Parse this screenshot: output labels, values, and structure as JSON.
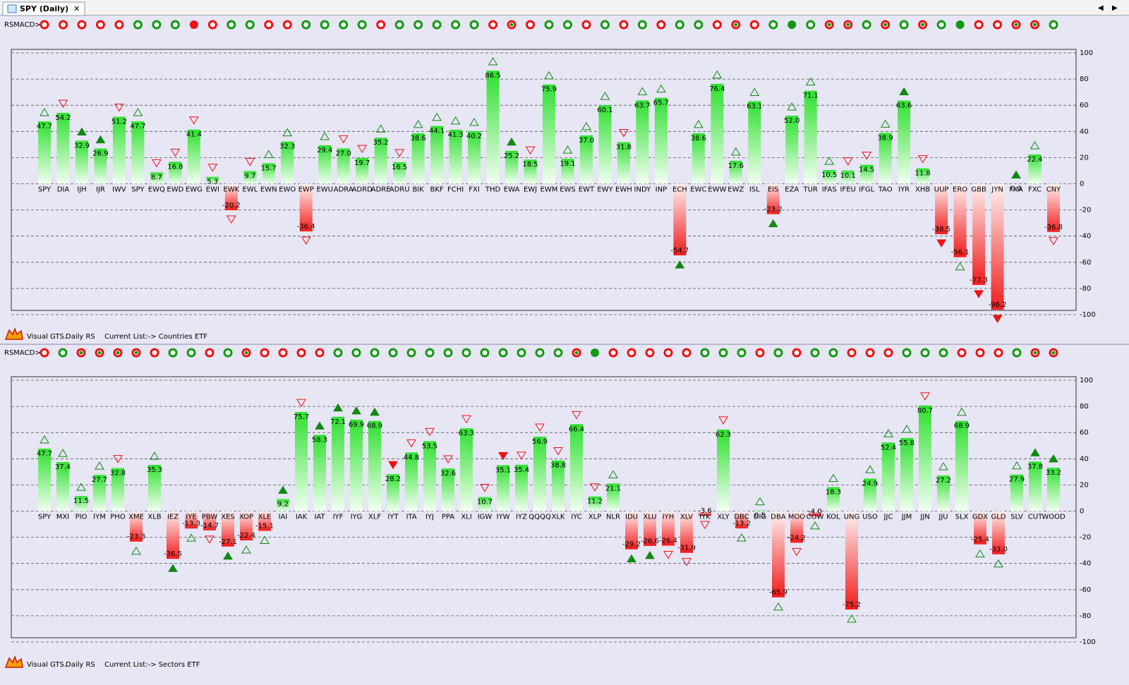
{
  "window": {
    "tab": "SPY (Daily)"
  },
  "chart_data": [
    {
      "type": "bar",
      "indicator_label": "RSMACD>",
      "signals": [
        "r",
        "r",
        "r",
        "r",
        "r",
        "g",
        "g",
        "g",
        "R",
        "r",
        "g",
        "g",
        "r",
        "r",
        "g",
        "g",
        "g",
        "g",
        "r",
        "g",
        "g",
        "g",
        "g",
        "g",
        "r",
        "rg",
        "r",
        "g",
        "g",
        "r",
        "g",
        "r",
        "g",
        "r",
        "g",
        "g",
        "r",
        "rg",
        "r",
        "g",
        "G",
        "g",
        "rg",
        "rg",
        "g",
        "rg",
        "g",
        "rg",
        "g",
        "G",
        "r",
        "r",
        "rg",
        "rg",
        "g"
      ],
      "categories": [
        "SPY",
        "DIA",
        "IJH",
        "IJR",
        "IWV",
        "SPY",
        "EWQ",
        "EWD",
        "EWG",
        "EWI",
        "EWK",
        "EWL",
        "EWN",
        "EWO",
        "EWP",
        "EWU",
        "ADRA",
        "ADRD",
        "ADRE",
        "ADRU",
        "BIK",
        "BKF",
        "FCHI",
        "FXI",
        "THD",
        "EWA",
        "EWJ",
        "EWM",
        "EWS",
        "EWT",
        "EWY",
        "EWH",
        "INDY",
        "INP",
        "ECH",
        "EWC",
        "EWW",
        "EWZ",
        "ISL",
        "EIS",
        "EZA",
        "TUR",
        "IFAS",
        "IFEU",
        "IFGL",
        "TAO",
        "IYR",
        "XHB",
        "UUP",
        "ERO",
        "GBB",
        "JYN",
        "FXA",
        "FXC",
        "CNY"
      ],
      "values": [
        47.7,
        54.2,
        32.9,
        26.9,
        51.2,
        47.7,
        8.7,
        16.8,
        41.4,
        5.3,
        -20.2,
        9.7,
        15.7,
        32.3,
        -36.4,
        29.4,
        27.0,
        19.7,
        35.2,
        16.5,
        38.6,
        44.1,
        41.3,
        40.2,
        86.5,
        25.2,
        18.5,
        75.9,
        19.1,
        37.0,
        60.1,
        31.8,
        63.7,
        65.7,
        -54.7,
        38.6,
        76.4,
        17.6,
        63.1,
        -23.2,
        52.0,
        71.1,
        10.5,
        10.1,
        14.5,
        38.9,
        63.6,
        11.8,
        -38.5,
        -56.1,
        -77.3,
        -96.2,
        0,
        22.4,
        -36.8
      ],
      "value_labels": [
        "47.7",
        "54.2",
        "32.9",
        "26.9",
        "51.2",
        "47.7",
        "8.7",
        "16.8",
        "41.4",
        "5.3",
        "-20.2",
        "9.7",
        "15.7",
        "32.3",
        "-36.4",
        "29.4",
        "27.0",
        "19.7",
        "35.2",
        "16.5",
        "38.6",
        "44.1",
        "41.3",
        "40.2",
        "86.5",
        "25.2",
        "18.5",
        "75.9",
        "19.1",
        "37.0",
        "60.1",
        "31.8",
        "63.7",
        "65.7",
        "-54.7",
        "38.6",
        "76.4",
        "17.6",
        "63.1",
        "-23.2",
        "52.0",
        "71.1",
        "10.5",
        "10.1",
        "14.5",
        "38.9",
        "63.6",
        "11.8",
        "-38.5",
        "-56.1",
        "-77.3",
        "-96.2",
        "0.0",
        "22.4",
        "-36.8"
      ],
      "markers": [
        "u",
        "d",
        "U",
        "U",
        "d",
        "u",
        "d",
        "d",
        "d",
        "d",
        "d",
        "d",
        "u",
        "u",
        "d",
        "u",
        "d",
        "d",
        "u",
        "d",
        "u",
        "u",
        "u",
        "u",
        "u",
        "U",
        "d",
        "u",
        "u",
        "u",
        "u",
        "d",
        "u",
        "u",
        "U",
        "u",
        "u",
        "u",
        "u",
        "U",
        "u",
        "u",
        "u",
        "d",
        "d",
        "u",
        "U",
        "d",
        "D",
        "u",
        "D",
        "D",
        "U",
        "u",
        "d"
      ],
      "ylim": [
        -100,
        100
      ],
      "yticks": [
        100,
        80,
        60,
        40,
        20,
        0,
        -20,
        -40,
        -60,
        -80,
        -100
      ],
      "grid": true,
      "footer": {
        "app": "Visual GTS.",
        "mode": "Daily RS",
        "list": "Current List:-> Countries ETF"
      }
    },
    {
      "type": "bar",
      "indicator_label": "RSMACD>",
      "signals": [
        "r",
        "g",
        "rg",
        "rg",
        "rg",
        "rg",
        "r",
        "g",
        "g",
        "r",
        "g",
        "rg",
        "r",
        "r",
        "r",
        "r",
        "g",
        "g",
        "g",
        "g",
        "g",
        "g",
        "g",
        "g",
        "g",
        "g",
        "g",
        "g",
        "g",
        "rg",
        "G",
        "r",
        "r",
        "r",
        "r",
        "r",
        "g",
        "g",
        "g",
        "r",
        "g",
        "r",
        "g",
        "g",
        "r",
        "r",
        "r",
        "g",
        "g",
        "g",
        "r",
        "r",
        "r",
        "g",
        "rg",
        "rg"
      ],
      "categories": [
        "SPY",
        "MXI",
        "PIO",
        "IYM",
        "PHO",
        "XME",
        "XLB",
        "IEZ",
        "IYE",
        "PBW",
        "XES",
        "XOP",
        "XLE",
        "IAI",
        "IAK",
        "IAT",
        "IYF",
        "IYG",
        "XLF",
        "IYT",
        "ITA",
        "IYJ",
        "PPA",
        "XLI",
        "IGW",
        "IYW",
        "IYZ",
        "QQQQ",
        "XLK",
        "IYC",
        "XLP",
        "NLR",
        "IDU",
        "XLU",
        "IYH",
        "XLV",
        "IYK",
        "XLY",
        "DBC",
        "DIG",
        "DBA",
        "MOO",
        "COW",
        "KOL",
        "UNG",
        "USO",
        "JJC",
        "JJM",
        "JJN",
        "JJU",
        "SLX",
        "GDX",
        "GLD",
        "SLV",
        "CUT",
        "WOOD"
      ],
      "values": [
        47.7,
        37.4,
        11.5,
        27.7,
        32.8,
        -23.3,
        35.3,
        -36.5,
        -13.3,
        -14.7,
        -27.1,
        -22.4,
        -15.1,
        9.2,
        75.7,
        58.3,
        72.1,
        69.9,
        68.9,
        28.2,
        44.8,
        53.5,
        32.6,
        63.3,
        10.7,
        35.1,
        35.4,
        56.9,
        38.8,
        66.4,
        11.2,
        21.1,
        -29.2,
        -26.6,
        -26.4,
        -31.9,
        -3.6,
        62.3,
        -13.2,
        0.5,
        -65.9,
        -24.2,
        -4.0,
        18.3,
        -75.2,
        24.9,
        52.4,
        55.8,
        80.7,
        27.2,
        68.9,
        -25.4,
        -33.0,
        27.9,
        37.8,
        33.2
      ],
      "value_labels": [
        "47.7",
        "37.4",
        "11.5",
        "27.7",
        "32.8",
        "-23.3",
        "35.3",
        "-36.5",
        "-13.3",
        "-14.7",
        "-27.1",
        "-22.4",
        "-15.1",
        "9.2",
        "75.7",
        "58.3",
        "72.1",
        "69.9",
        "68.9",
        "28.2",
        "44.8",
        "53.5",
        "32.6",
        "63.3",
        "10.7",
        "35.1",
        "35.4",
        "56.9",
        "38.8",
        "66.4",
        "11.2",
        "21.1",
        "-29.2",
        "-26.6",
        "-26.4",
        "-31.9",
        "-3.6",
        "62.3",
        "-13.2",
        "0.5",
        "-65.9",
        "-24.2",
        "-4.0",
        "18.3",
        "-75.2",
        "24.9",
        "52.4",
        "55.8",
        "80.7",
        "27.2",
        "68.9",
        "-25.4",
        "-33.0",
        "27.9",
        "37.8",
        "33.2"
      ],
      "markers": [
        "u",
        "u",
        "u",
        "u",
        "d",
        "u",
        "u",
        "U",
        "u",
        "d",
        "U",
        "u",
        "u",
        "U",
        "d",
        "U",
        "U",
        "U",
        "U",
        "D",
        "d",
        "d",
        "d",
        "d",
        "d",
        "D",
        "d",
        "d",
        "d",
        "d",
        "d",
        "u",
        "U",
        "U",
        "d",
        "d",
        "d",
        "d",
        "u",
        "u",
        "u",
        "d",
        "u",
        "u",
        "u",
        "u",
        "u",
        "u",
        "d",
        "u",
        "u",
        "u",
        "u",
        "u",
        "U",
        "U"
      ],
      "ylim": [
        -100,
        100
      ],
      "yticks": [
        100,
        80,
        60,
        40,
        20,
        0,
        -20,
        -40,
        -60,
        -80,
        -100
      ],
      "grid": true,
      "footer": {
        "app": "Visual GTS.",
        "mode": "Daily RS",
        "list": "Current List:-> Sectors ETF"
      }
    }
  ]
}
